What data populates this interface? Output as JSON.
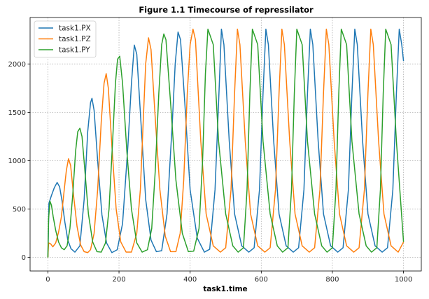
{
  "chart_data": {
    "type": "line",
    "title": "Figure 1.1 Timecourse of repressilator",
    "xlabel": "task1.time",
    "ylabel": "",
    "xlim": [
      -50,
      1050
    ],
    "ylim": [
      -140,
      2480
    ],
    "xticks": [
      0,
      200,
      400,
      600,
      800,
      1000
    ],
    "yticks": [
      0,
      500,
      1000,
      1500,
      2000
    ],
    "xtick_labels": [
      "0",
      "200",
      "400",
      "600",
      "800",
      "1000"
    ],
    "ytick_labels": [
      "0",
      "500",
      "1000",
      "1500",
      "2000"
    ],
    "grid": true,
    "legend_position": "top-left",
    "series": [
      {
        "name": "task1.PX",
        "color": "#1f77b4",
        "x": [
          0,
          3,
          10,
          18,
          26,
          33,
          40,
          48,
          56,
          65,
          76,
          90,
          102,
          112,
          120,
          124,
          130,
          140,
          152,
          165,
          180,
          195,
          210,
          225,
          235,
          243,
          250,
          260,
          275,
          290,
          305,
          320,
          335,
          350,
          358,
          366,
          373,
          385,
          400,
          420,
          440,
          455,
          470,
          480,
          488,
          495,
          510,
          525,
          545,
          565,
          580,
          595,
          605,
          613,
          620,
          635,
          650,
          670,
          690,
          705,
          720,
          730,
          738,
          745,
          760,
          775,
          795,
          815,
          830,
          845,
          855,
          863,
          870,
          885,
          900,
          920,
          940,
          955,
          970,
          980,
          988,
          995,
          1000
        ],
        "y": [
          0,
          560,
          640,
          720,
          775,
          730,
          580,
          360,
          180,
          90,
          55,
          120,
          600,
          1300,
          1600,
          1645,
          1520,
          1000,
          440,
          150,
          50,
          80,
          350,
          1150,
          1800,
          2195,
          2100,
          1500,
          600,
          180,
          60,
          70,
          450,
          1400,
          2000,
          2330,
          2250,
          1600,
          700,
          200,
          55,
          85,
          700,
          1600,
          2360,
          2200,
          1200,
          450,
          120,
          55,
          100,
          700,
          1700,
          2360,
          2200,
          1200,
          450,
          120,
          55,
          100,
          700,
          1700,
          2360,
          2200,
          1200,
          450,
          120,
          55,
          100,
          700,
          1700,
          2360,
          2200,
          1200,
          450,
          120,
          55,
          100,
          700,
          1700,
          2360,
          2200,
          2030
        ]
      },
      {
        "name": "task1.PZ",
        "color": "#ff7f0e",
        "x": [
          0,
          2,
          8,
          14,
          22,
          30,
          38,
          46,
          52,
          58,
          64,
          72,
          82,
          92,
          102,
          112,
          120,
          130,
          140,
          150,
          158,
          164,
          170,
          180,
          192,
          205,
          220,
          235,
          250,
          260,
          268,
          275,
          283,
          290,
          300,
          315,
          330,
          345,
          360,
          372,
          382,
          392,
          400,
          408,
          415,
          430,
          445,
          465,
          485,
          500,
          515,
          525,
          533,
          540,
          555,
          570,
          590,
          610,
          625,
          640,
          650,
          658,
          665,
          680,
          695,
          715,
          735,
          750,
          765,
          775,
          783,
          790,
          805,
          820,
          840,
          860,
          875,
          890,
          900,
          908,
          915,
          930,
          945,
          965,
          985,
          1000
        ],
        "y": [
          0,
          150,
          140,
          110,
          150,
          260,
          420,
          700,
          900,
          1020,
          950,
          650,
          320,
          130,
          60,
          50,
          80,
          250,
          700,
          1400,
          1800,
          1900,
          1750,
          1150,
          500,
          160,
          55,
          55,
          250,
          700,
          1400,
          2000,
          2270,
          2150,
          1550,
          700,
          220,
          60,
          60,
          250,
          800,
          1700,
          2200,
          2360,
          2250,
          1200,
          450,
          120,
          55,
          100,
          700,
          1700,
          2360,
          2200,
          1200,
          450,
          120,
          55,
          100,
          700,
          1700,
          2360,
          2200,
          1200,
          450,
          120,
          55,
          100,
          700,
          1700,
          2360,
          2200,
          1200,
          450,
          120,
          55,
          100,
          700,
          1700,
          2360,
          2200,
          1200,
          450,
          120,
          55,
          160
        ]
      },
      {
        "name": "task1.PY",
        "color": "#2ca02c",
        "x": [
          0,
          2,
          6,
          10,
          15,
          22,
          30,
          38,
          46,
          54,
          62,
          70,
          78,
          84,
          90,
          96,
          104,
          114,
          126,
          138,
          150,
          162,
          172,
          182,
          190,
          196,
          202,
          210,
          222,
          235,
          250,
          265,
          280,
          292,
          302,
          312,
          320,
          326,
          332,
          345,
          360,
          378,
          395,
          410,
          425,
          435,
          443,
          450,
          465,
          480,
          500,
          520,
          535,
          550,
          560,
          568,
          575,
          590,
          605,
          625,
          645,
          660,
          675,
          685,
          693,
          700,
          715,
          730,
          750,
          770,
          785,
          800,
          810,
          818,
          825,
          840,
          855,
          875,
          895,
          910,
          925,
          935,
          943,
          950,
          965,
          980,
          1000
        ],
        "y": [
          0,
          400,
          580,
          540,
          420,
          280,
          160,
          100,
          80,
          120,
          300,
          650,
          1100,
          1300,
          1335,
          1250,
          900,
          450,
          160,
          60,
          55,
          150,
          500,
          1200,
          1800,
          2050,
          2080,
          1800,
          1100,
          500,
          150,
          55,
          80,
          300,
          900,
          1700,
          2200,
          2310,
          2250,
          1600,
          800,
          250,
          60,
          65,
          300,
          1000,
          1900,
          2360,
          2200,
          1200,
          450,
          120,
          55,
          100,
          700,
          1700,
          2360,
          2200,
          1200,
          450,
          120,
          55,
          100,
          700,
          1700,
          2360,
          2200,
          1200,
          450,
          120,
          55,
          100,
          700,
          1700,
          2360,
          2200,
          1200,
          450,
          120,
          55,
          100,
          700,
          1700,
          2360,
          2200,
          1200,
          160
        ]
      }
    ]
  }
}
